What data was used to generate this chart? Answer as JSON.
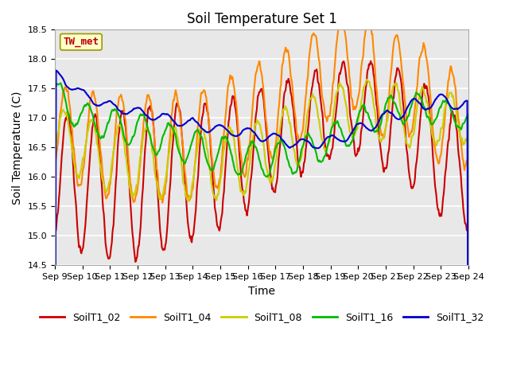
{
  "title": "Soil Temperature Set 1",
  "xlabel": "Time",
  "ylabel": "Soil Temperature (C)",
  "ylim": [
    14.5,
    18.5
  ],
  "yticks": [
    14.5,
    15.0,
    15.5,
    16.0,
    16.5,
    17.0,
    17.5,
    18.0,
    18.5
  ],
  "series_colors": {
    "SoilT1_02": "#cc0000",
    "SoilT1_04": "#ff8800",
    "SoilT1_08": "#cccc00",
    "SoilT1_16": "#00bb00",
    "SoilT1_32": "#0000cc"
  },
  "x_tick_labels": [
    "Sep 9",
    "Sep 10",
    "Sep 11",
    "Sep 12",
    "Sep 13",
    "Sep 14",
    "Sep 15",
    "Sep 16",
    "Sep 17",
    "Sep 18",
    "Sep 19",
    "Sep 20",
    "Sep 21",
    "Sep 22",
    "Sep 23",
    "Sep 24"
  ],
  "annotation_text": "TW_met",
  "annotation_color": "#bb0000",
  "annotation_bg": "#ffffcc",
  "annotation_border": "#999900",
  "background_color": "#e8e8e8",
  "grid_color": "#ffffff",
  "title_fontsize": 12,
  "axis_fontsize": 10,
  "tick_fontsize": 8,
  "legend_fontsize": 9,
  "linewidth": 1.5
}
